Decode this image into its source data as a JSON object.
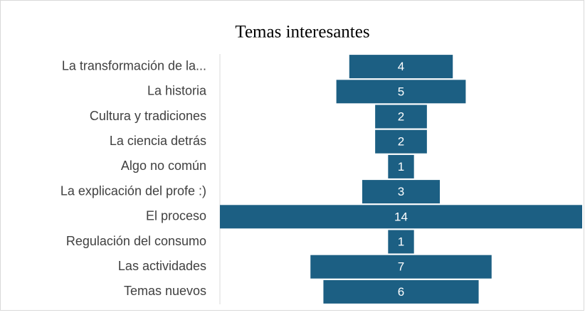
{
  "chart_data": {
    "type": "funnel",
    "title": "Temas interesantes",
    "categories": [
      "La transformación de la...",
      "La historia",
      "Cultura y tradiciones",
      "La ciencia detrás",
      "Algo no común",
      "La explicación del profe :)",
      "El proceso",
      "Regulación del consumo",
      "Las actividades",
      "Temas nuevos"
    ],
    "values": [
      4,
      5,
      2,
      2,
      1,
      3,
      14,
      1,
      7,
      6
    ],
    "color": "#1c5f83"
  }
}
